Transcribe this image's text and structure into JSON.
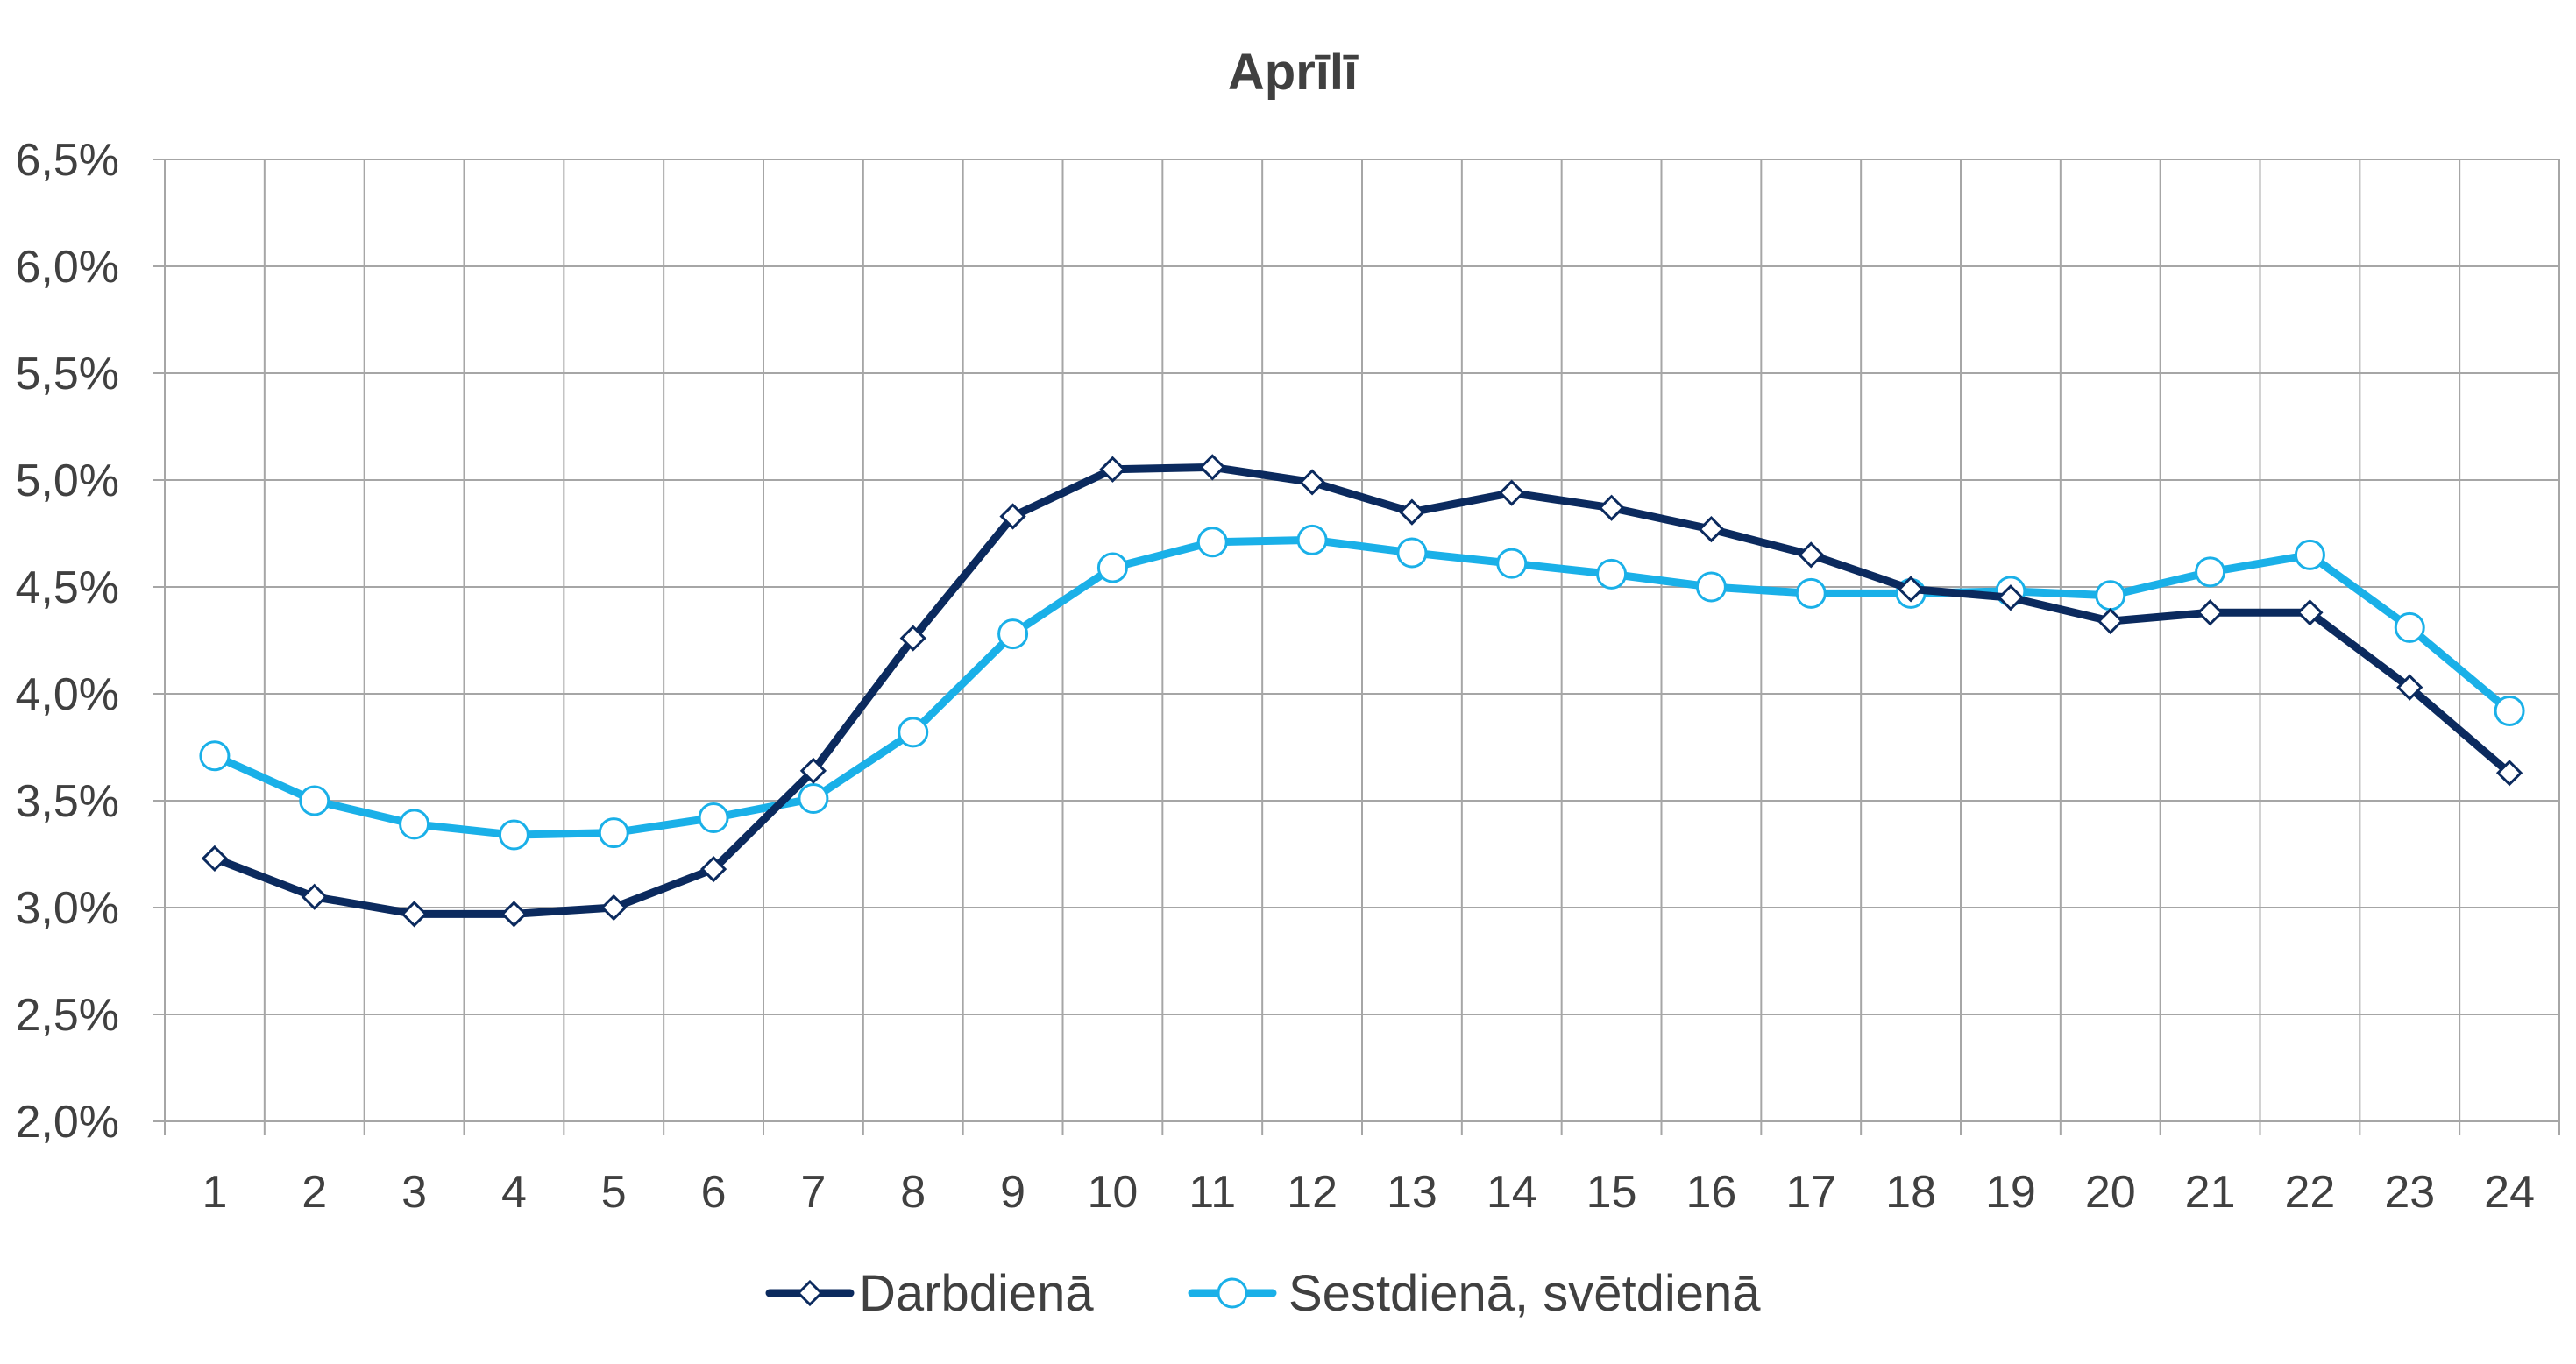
{
  "chart_data": {
    "type": "line",
    "title": "Aprīlī",
    "xlabel": "",
    "ylabel": "",
    "categories": [
      "1",
      "2",
      "3",
      "4",
      "5",
      "6",
      "7",
      "8",
      "9",
      "10",
      "11",
      "12",
      "13",
      "14",
      "15",
      "16",
      "17",
      "18",
      "19",
      "20",
      "21",
      "22",
      "23",
      "24"
    ],
    "y_ticks": [
      "2,0%",
      "2,5%",
      "3,0%",
      "3,5%",
      "4,0%",
      "4,5%",
      "5,0%",
      "5,5%",
      "6,0%",
      "6,5%"
    ],
    "ylim": [
      2.0,
      6.5
    ],
    "grid": true,
    "legend_position": "bottom",
    "series": [
      {
        "name": "Darbdienā",
        "color": "#0b2a5e",
        "marker": "diamond",
        "values": [
          3.23,
          3.05,
          2.97,
          2.97,
          3.0,
          3.18,
          3.64,
          4.26,
          4.83,
          5.05,
          5.06,
          4.99,
          4.85,
          4.94,
          4.87,
          4.77,
          4.65,
          4.49,
          4.45,
          4.34,
          4.38,
          4.38,
          4.03,
          3.63
        ]
      },
      {
        "name": "Sestdienā, svētdienā",
        "color": "#1ab0e8",
        "marker": "circle",
        "values": [
          3.71,
          3.5,
          3.39,
          3.34,
          3.35,
          3.42,
          3.51,
          3.82,
          4.28,
          4.59,
          4.71,
          4.72,
          4.66,
          4.61,
          4.56,
          4.5,
          4.47,
          4.47,
          4.48,
          4.46,
          4.57,
          4.65,
          4.31,
          3.92
        ]
      }
    ]
  }
}
